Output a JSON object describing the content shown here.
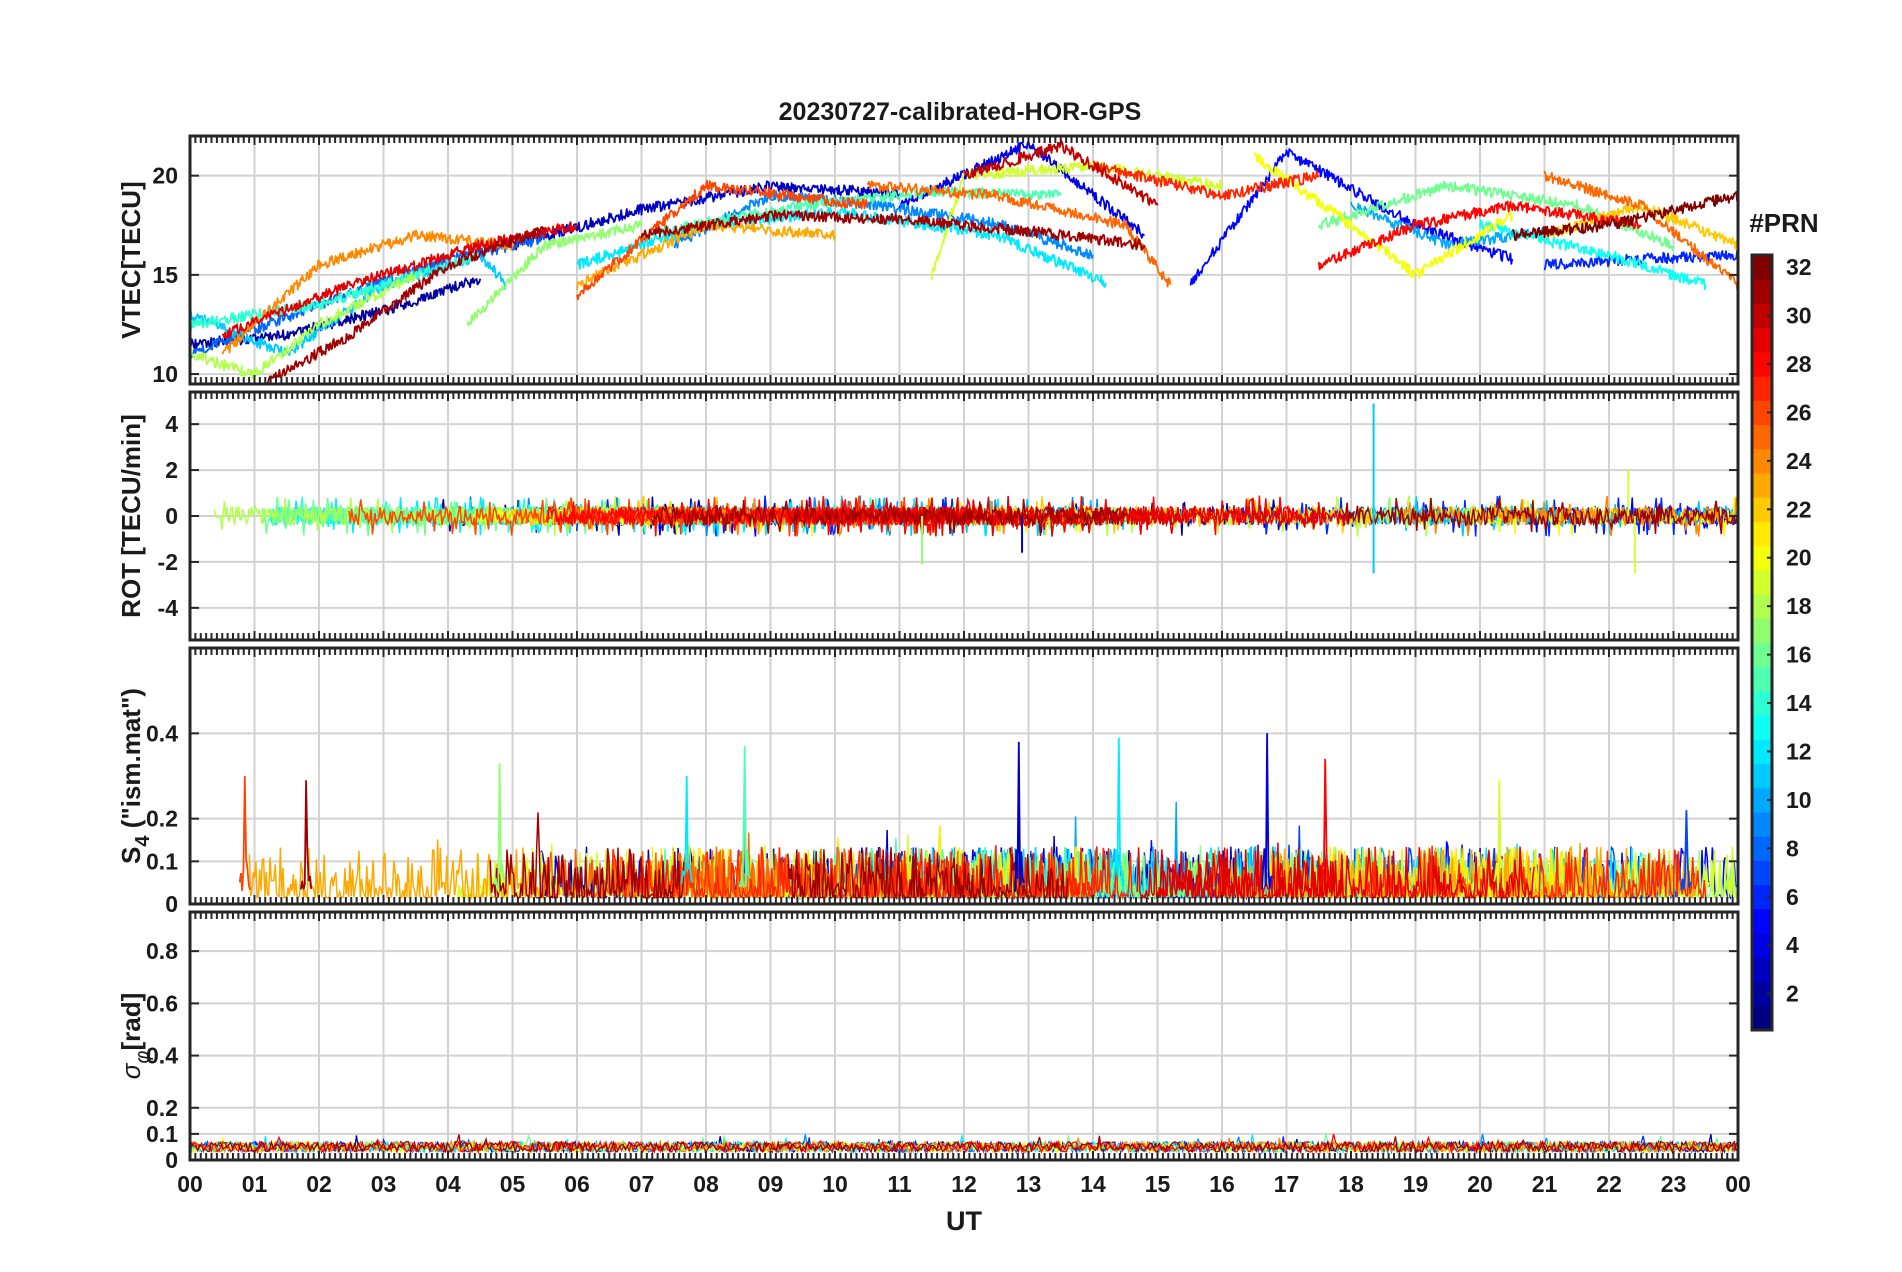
{
  "title": "20230727-calibrated-HOR-GPS",
  "colorbar": {
    "title": "#PRN",
    "tick_labels": [
      "2",
      "4",
      "6",
      "8",
      "10",
      "12",
      "14",
      "16",
      "18",
      "20",
      "22",
      "24",
      "26",
      "28",
      "30",
      "32"
    ],
    "range": [
      1,
      32
    ],
    "colormap": "jet"
  },
  "colors": {
    "axis": "#262626",
    "grid": "#d2d2d2",
    "background": "#ffffff"
  },
  "chart_data": [
    {
      "type": "line",
      "panel": "vtec",
      "ylabel": "VTEC[TECU]",
      "ylim": [
        9.5,
        22
      ],
      "yticks": [
        10,
        15,
        20
      ],
      "ytick_labels": [
        "10",
        "15",
        "20"
      ],
      "xlim": [
        0,
        24
      ],
      "grid": true,
      "series": [
        {
          "name": "PRN 2",
          "prn": 2,
          "x": [
            0,
            1.5,
            3,
            4.5
          ],
          "values": [
            11.5,
            12.0,
            13.2,
            14.8
          ]
        },
        {
          "name": "PRN 3",
          "prn": 3,
          "x": [
            5,
            7,
            9,
            11
          ],
          "values": [
            16.5,
            18.3,
            19.5,
            19.1
          ]
        },
        {
          "name": "PRN 4",
          "prn": 4,
          "x": [
            11,
            13,
            14.8
          ],
          "values": [
            18.5,
            21.6,
            17.0
          ]
        },
        {
          "name": "PRN 5",
          "prn": 5,
          "x": [
            15.5,
            17,
            19,
            20.5
          ],
          "values": [
            14.5,
            21.2,
            17.5,
            15.8
          ]
        },
        {
          "name": "PRN 6",
          "prn": 6,
          "x": [
            21,
            22.5,
            24
          ],
          "values": [
            15.5,
            15.8,
            16.0
          ]
        },
        {
          "name": "PRN 8",
          "prn": 8,
          "x": [
            0,
            2,
            4,
            5.5
          ],
          "values": [
            11.0,
            13.5,
            15.8,
            16.8
          ]
        },
        {
          "name": "PRN 9",
          "prn": 9,
          "x": [
            7.5,
            9,
            10.5,
            12.5,
            14
          ],
          "values": [
            16.5,
            19.0,
            18.6,
            17.6,
            16.0
          ]
        },
        {
          "name": "PRN 10",
          "prn": 10,
          "x": [
            18,
            19.5,
            21
          ],
          "values": [
            18.5,
            16.5,
            17.2
          ]
        },
        {
          "name": "PRN 11",
          "prn": 11,
          "x": [
            0,
            1.5,
            3,
            4.5,
            4.9
          ],
          "values": [
            13.0,
            11.0,
            14.5,
            16.0,
            14.5
          ]
        },
        {
          "name": "PRN 12",
          "prn": 12,
          "x": [
            6,
            8,
            10,
            12.5,
            14.2
          ],
          "values": [
            15.5,
            17.5,
            18.2,
            17.0,
            14.6
          ]
        },
        {
          "name": "PRN 13",
          "prn": 13,
          "x": [
            20,
            22,
            23.5
          ],
          "values": [
            17.5,
            16.0,
            14.5
          ]
        },
        {
          "name": "PRN 14",
          "prn": 14,
          "x": [
            0,
            2,
            4.5
          ],
          "values": [
            12.5,
            13.5,
            16.0
          ]
        },
        {
          "name": "PRN 15",
          "prn": 15,
          "x": [
            7,
            9.5,
            11.5,
            13.5
          ],
          "values": [
            17.0,
            18.5,
            19.2,
            19.0
          ]
        },
        {
          "name": "PRN 16",
          "prn": 16,
          "x": [
            17.5,
            19.5,
            21.5,
            23
          ],
          "values": [
            17.5,
            19.5,
            18.5,
            16.5
          ]
        },
        {
          "name": "PRN 17",
          "prn": 17,
          "x": [
            4.3,
            5.5,
            7
          ],
          "values": [
            12.5,
            16.5,
            17.5
          ]
        },
        {
          "name": "PRN 18",
          "prn": 18,
          "x": [
            0,
            1,
            2,
            3.5
          ],
          "values": [
            11.0,
            10.0,
            12.5,
            15.0
          ]
        },
        {
          "name": "PRN 19",
          "prn": 19,
          "x": [
            11.5,
            12,
            14,
            16
          ],
          "values": [
            15.0,
            20.0,
            20.5,
            19.5
          ]
        },
        {
          "name": "PRN 20",
          "prn": 20,
          "x": [
            16.5,
            18,
            19,
            20.5
          ],
          "values": [
            21.0,
            17.5,
            15.0,
            18.0
          ]
        },
        {
          "name": "PRN 22",
          "prn": 22,
          "x": [
            21,
            22.5,
            24
          ],
          "values": [
            17.0,
            18.5,
            16.5
          ]
        },
        {
          "name": "PRN 23",
          "prn": 23,
          "x": [
            6,
            8,
            10
          ],
          "values": [
            14.5,
            17.5,
            17.0
          ]
        },
        {
          "name": "PRN 24",
          "prn": 24,
          "x": [
            0.5,
            2,
            3.5,
            5
          ],
          "values": [
            11.0,
            15.5,
            17.0,
            16.5
          ]
        },
        {
          "name": "PRN 25",
          "prn": 25,
          "x": [
            10.5,
            12.5,
            14.5,
            15.2
          ],
          "values": [
            19.5,
            19.0,
            17.5,
            14.5
          ]
        },
        {
          "name": "PRN 25b",
          "prn": 25,
          "x": [
            21,
            22.5,
            24
          ],
          "values": [
            20.0,
            18.5,
            14.5
          ]
        },
        {
          "name": "PRN 26",
          "prn": 26,
          "x": [
            6,
            8,
            10.5
          ],
          "values": [
            14.0,
            19.5,
            18.5
          ]
        },
        {
          "name": "PRN 27",
          "prn": 27,
          "x": [
            14,
            16,
            17.5
          ],
          "values": [
            20.5,
            19.0,
            20.0
          ]
        },
        {
          "name": "PRN 28",
          "prn": 28,
          "x": [
            17.5,
            19,
            20.5,
            22.5
          ],
          "values": [
            15.5,
            17.5,
            18.5,
            17.5
          ]
        },
        {
          "name": "PRN 29",
          "prn": 29,
          "x": [
            0.5,
            2.5,
            4.5,
            6
          ],
          "values": [
            12.0,
            14.5,
            16.5,
            17.5
          ]
        },
        {
          "name": "PRN 30",
          "prn": 30,
          "x": [
            12,
            13.5,
            15
          ],
          "values": [
            20.0,
            21.5,
            18.5
          ]
        },
        {
          "name": "PRN 31",
          "prn": 31,
          "x": [
            1.2,
            2.5,
            4,
            5.5
          ],
          "values": [
            9.6,
            12.0,
            15.5,
            17.3
          ]
        },
        {
          "name": "PRN 31b",
          "prn": 31,
          "x": [
            7,
            9,
            11,
            13,
            14.8
          ],
          "values": [
            17.0,
            18.0,
            17.8,
            17.2,
            16.5
          ]
        },
        {
          "name": "PRN 32",
          "prn": 32,
          "x": [
            20.5,
            22,
            24
          ],
          "values": [
            17.0,
            17.5,
            19.0
          ]
        }
      ]
    },
    {
      "type": "line",
      "panel": "rot",
      "ylabel": "ROT [TECU/min]",
      "ylim": [
        -5.4,
        5.4
      ],
      "yticks": [
        -4,
        -2,
        0,
        2,
        4
      ],
      "ytick_labels": [
        "-4",
        "-2",
        "0",
        "2",
        "4"
      ],
      "xlim": [
        0,
        24
      ],
      "grid": true,
      "noise_amplitude_range": [
        -1.0,
        1.0
      ],
      "spikes": [
        {
          "x": 18.35,
          "value": 4.9,
          "prn": 11
        },
        {
          "x": 18.35,
          "value": -2.5,
          "prn": 11
        },
        {
          "x": 11.35,
          "value": -2.1,
          "prn": 17
        },
        {
          "x": 22.3,
          "value": 2.0,
          "prn": 19
        },
        {
          "x": 22.4,
          "value": -2.5,
          "prn": 19
        },
        {
          "x": 12.9,
          "value": -1.6,
          "prn": 3
        }
      ]
    },
    {
      "type": "line",
      "panel": "s4",
      "ylabel": "S4 (\"ism.mat\")",
      "ylabel_main": "S",
      "ylabel_sub": "4",
      "ylabel_rest": " (\"ism.mat\")",
      "ylim": [
        0,
        0.6
      ],
      "yticks": [
        0,
        0.1,
        0.2,
        0.4
      ],
      "ytick_labels": [
        "0",
        "0.1",
        "0.2",
        "0.4"
      ],
      "xlim": [
        0,
        24
      ],
      "grid": true,
      "peaks": [
        {
          "x": 0.85,
          "value": 0.3,
          "prn": 26
        },
        {
          "x": 1.8,
          "value": 0.29,
          "prn": 31
        },
        {
          "x": 4.8,
          "value": 0.33,
          "prn": 17
        },
        {
          "x": 7.7,
          "value": 0.3,
          "prn": 12
        },
        {
          "x": 8.6,
          "value": 0.37,
          "prn": 15
        },
        {
          "x": 12.85,
          "value": 0.38,
          "prn": 3
        },
        {
          "x": 14.4,
          "value": 0.39,
          "prn": 12
        },
        {
          "x": 16.7,
          "value": 0.4,
          "prn": 4
        },
        {
          "x": 17.6,
          "value": 0.34,
          "prn": 28
        },
        {
          "x": 20.3,
          "value": 0.29,
          "prn": 19
        },
        {
          "x": 23.2,
          "value": 0.22,
          "prn": 7
        }
      ]
    },
    {
      "type": "line",
      "panel": "sigma_phi",
      "ylabel": "σφ[rad]",
      "ylabel_main": "σ",
      "ylabel_sub": "φ",
      "ylabel_rest": "[rad]",
      "ylim": [
        0,
        0.95
      ],
      "yticks": [
        0,
        0.1,
        0.2,
        0.4,
        0.6,
        0.8
      ],
      "ytick_labels": [
        "0",
        "0.1",
        "0.2",
        "0.4",
        "0.6",
        "0.8"
      ],
      "xlim": [
        0,
        24
      ],
      "xlabel": "UT",
      "xticks": [
        0,
        1,
        2,
        3,
        4,
        5,
        6,
        7,
        8,
        9,
        10,
        11,
        12,
        13,
        14,
        15,
        16,
        17,
        18,
        19,
        20,
        21,
        22,
        23,
        24
      ],
      "xtick_labels": [
        "00",
        "01",
        "02",
        "03",
        "04",
        "05",
        "06",
        "07",
        "08",
        "09",
        "10",
        "11",
        "12",
        "13",
        "14",
        "15",
        "16",
        "17",
        "18",
        "19",
        "20",
        "21",
        "22",
        "23",
        "00"
      ],
      "grid": true,
      "baseline_range": [
        0.03,
        0.07
      ]
    }
  ]
}
